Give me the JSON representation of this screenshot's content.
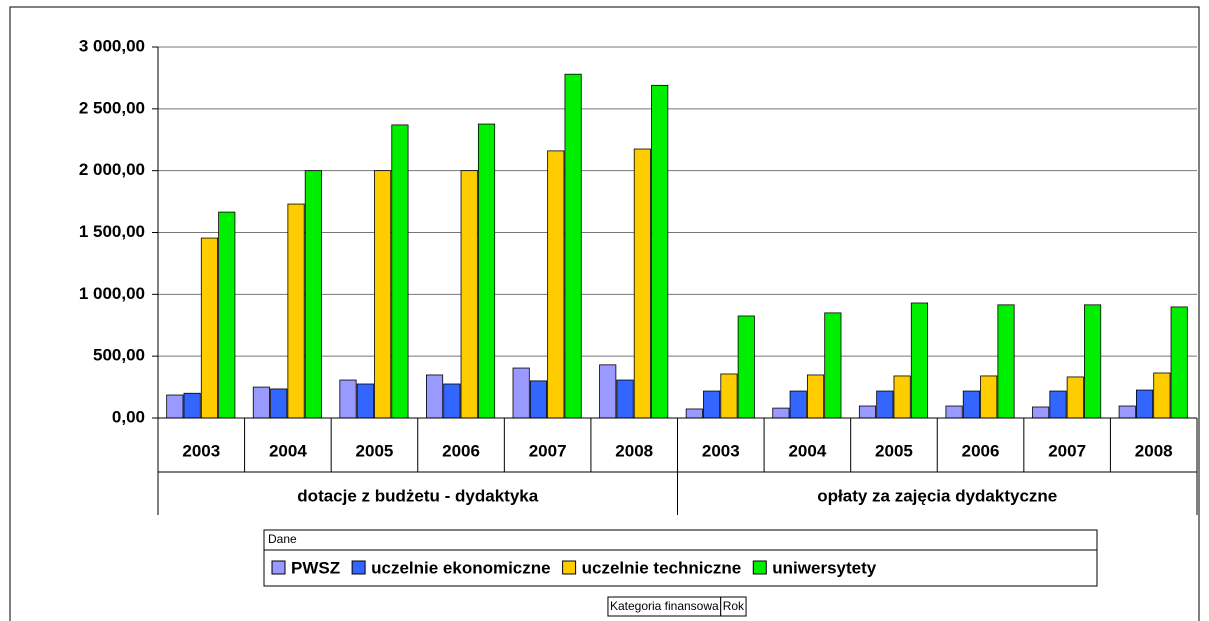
{
  "chart_data": {
    "type": "bar",
    "groups": [
      {
        "name": "dotacje z budżetu - dydaktyka",
        "categories": [
          "2003",
          "2004",
          "2005",
          "2006",
          "2007",
          "2008"
        ]
      },
      {
        "name": "opłaty za zajęcia dydaktyczne",
        "categories": [
          "2003",
          "2004",
          "2005",
          "2006",
          "2007",
          "2008"
        ]
      }
    ],
    "series": [
      {
        "name": "PWSZ",
        "color": "#9999ff",
        "values": [
          186,
          250,
          307,
          348,
          404,
          430,
          73,
          80,
          97,
          97,
          89,
          97
        ]
      },
      {
        "name": "uczelnie ekonomiczne",
        "color": "#3366ff",
        "values": [
          200,
          235,
          275,
          275,
          300,
          307,
          218,
          218,
          218,
          218,
          218,
          226
        ]
      },
      {
        "name": "uczelnie techniczne",
        "color": "#ffcc00",
        "values": [
          1455,
          1730,
          2000,
          2000,
          2160,
          2175,
          356,
          348,
          340,
          340,
          332,
          364
        ]
      },
      {
        "name": "uniwersytety",
        "color": "#00ee00",
        "values": [
          1665,
          2000,
          2370,
          2377,
          2780,
          2690,
          825,
          850,
          930,
          915,
          915,
          898
        ]
      }
    ],
    "ylim": [
      0,
      3000
    ],
    "yticks": [
      {
        "value": 0,
        "label": "0,00"
      },
      {
        "value": 500,
        "label": "500,00"
      },
      {
        "value": 1000,
        "label": "1 000,00"
      },
      {
        "value": 1500,
        "label": "1 500,00"
      },
      {
        "value": 2000,
        "label": "2 000,00"
      },
      {
        "value": 2500,
        "label": "2 500,00"
      },
      {
        "value": 3000,
        "label": "3 000,00"
      }
    ],
    "grid": true,
    "legend_title": "Dane",
    "field_buttons": [
      "Kategoria finansowa",
      "Rok"
    ]
  }
}
